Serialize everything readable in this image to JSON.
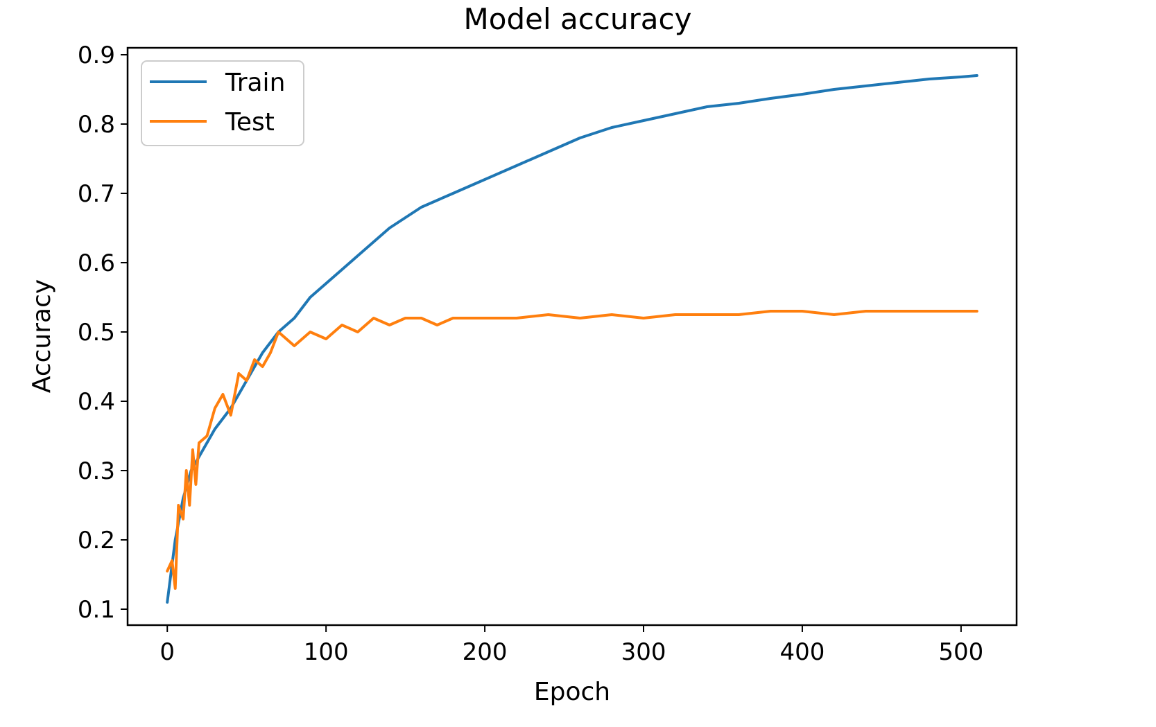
{
  "chart_data": {
    "type": "line",
    "title": "Model accuracy",
    "xlabel": "Epoch",
    "ylabel": "Accuracy",
    "xlim": [
      -25,
      535
    ],
    "ylim": [
      0.077,
      0.91
    ],
    "xticks": [
      0,
      100,
      200,
      300,
      400,
      500
    ],
    "yticks": [
      0.1,
      0.2,
      0.3,
      0.4,
      0.5,
      0.6,
      0.7,
      0.8,
      0.9
    ],
    "grid": false,
    "legend": "top-left",
    "series": [
      {
        "name": "Train",
        "color": "#1f77b4",
        "points": [
          [
            0,
            0.11
          ],
          [
            5,
            0.2
          ],
          [
            10,
            0.26
          ],
          [
            15,
            0.3
          ],
          [
            20,
            0.32
          ],
          [
            30,
            0.36
          ],
          [
            40,
            0.39
          ],
          [
            50,
            0.43
          ],
          [
            60,
            0.47
          ],
          [
            70,
            0.5
          ],
          [
            80,
            0.52
          ],
          [
            90,
            0.55
          ],
          [
            100,
            0.57
          ],
          [
            110,
            0.59
          ],
          [
            120,
            0.61
          ],
          [
            130,
            0.63
          ],
          [
            140,
            0.65
          ],
          [
            150,
            0.665
          ],
          [
            160,
            0.68
          ],
          [
            170,
            0.69
          ],
          [
            180,
            0.7
          ],
          [
            190,
            0.71
          ],
          [
            200,
            0.72
          ],
          [
            220,
            0.74
          ],
          [
            240,
            0.76
          ],
          [
            260,
            0.78
          ],
          [
            280,
            0.795
          ],
          [
            300,
            0.805
          ],
          [
            320,
            0.815
          ],
          [
            340,
            0.825
          ],
          [
            360,
            0.83
          ],
          [
            380,
            0.837
          ],
          [
            400,
            0.843
          ],
          [
            420,
            0.85
          ],
          [
            440,
            0.855
          ],
          [
            460,
            0.86
          ],
          [
            480,
            0.865
          ],
          [
            500,
            0.868
          ],
          [
            510,
            0.87
          ]
        ]
      },
      {
        "name": "Test",
        "color": "#ff7f0e",
        "points": [
          [
            0,
            0.155
          ],
          [
            3,
            0.17
          ],
          [
            5,
            0.13
          ],
          [
            7,
            0.25
          ],
          [
            10,
            0.23
          ],
          [
            12,
            0.3
          ],
          [
            14,
            0.25
          ],
          [
            16,
            0.33
          ],
          [
            18,
            0.28
          ],
          [
            20,
            0.34
          ],
          [
            25,
            0.35
          ],
          [
            30,
            0.39
          ],
          [
            35,
            0.41
          ],
          [
            40,
            0.38
          ],
          [
            45,
            0.44
          ],
          [
            50,
            0.43
          ],
          [
            55,
            0.46
          ],
          [
            60,
            0.45
          ],
          [
            65,
            0.47
          ],
          [
            70,
            0.5
          ],
          [
            75,
            0.49
          ],
          [
            80,
            0.48
          ],
          [
            90,
            0.5
          ],
          [
            100,
            0.49
          ],
          [
            110,
            0.51
          ],
          [
            120,
            0.5
          ],
          [
            130,
            0.52
          ],
          [
            140,
            0.51
          ],
          [
            150,
            0.52
          ],
          [
            160,
            0.52
          ],
          [
            170,
            0.51
          ],
          [
            180,
            0.52
          ],
          [
            200,
            0.52
          ],
          [
            220,
            0.52
          ],
          [
            240,
            0.525
          ],
          [
            260,
            0.52
          ],
          [
            280,
            0.525
          ],
          [
            300,
            0.52
          ],
          [
            320,
            0.525
          ],
          [
            340,
            0.525
          ],
          [
            360,
            0.525
          ],
          [
            380,
            0.53
          ],
          [
            400,
            0.53
          ],
          [
            420,
            0.525
          ],
          [
            440,
            0.53
          ],
          [
            460,
            0.53
          ],
          [
            480,
            0.53
          ],
          [
            500,
            0.53
          ],
          [
            510,
            0.53
          ]
        ]
      }
    ]
  }
}
